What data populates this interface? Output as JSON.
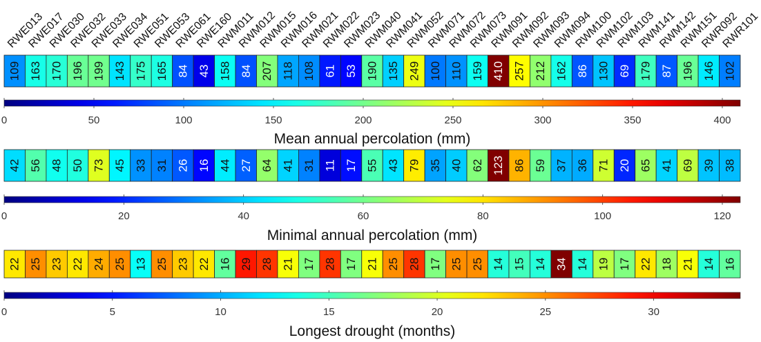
{
  "chart_data": [
    {
      "type": "heatmap",
      "title": "Mean annual percolation (mm)",
      "colormap": "jet",
      "color_range": [
        0,
        410
      ],
      "ticks": [
        0,
        50,
        100,
        150,
        200,
        250,
        300,
        350,
        400
      ],
      "categories": [
        "RWE013",
        "RWE017",
        "RWE030",
        "RWE032",
        "RWE033",
        "RWE034",
        "RWE051",
        "RWE053",
        "RWE061",
        "RWE160",
        "RWM011",
        "RWM012",
        "RWM015",
        "RWM016",
        "RWM021",
        "RWM022",
        "RWM023",
        "RWM040",
        "RWM041",
        "RWM052",
        "RWM071",
        "RWM072",
        "RWM073",
        "RWM091",
        "RWM092",
        "RWM093",
        "RWM094",
        "RWM100",
        "RWM102",
        "RWM103",
        "RWM141",
        "RWM142",
        "RWM151",
        "RWR092",
        "RWR101"
      ],
      "values": [
        109,
        163,
        170,
        196,
        199,
        143,
        175,
        165,
        84,
        43,
        158,
        84,
        207,
        118,
        108,
        61,
        53,
        190,
        135,
        249,
        100,
        110,
        159,
        410,
        257,
        212,
        162,
        86,
        130,
        69,
        179,
        87,
        196,
        146,
        102
      ]
    },
    {
      "type": "heatmap",
      "title": "Minimal annual percolation (mm)",
      "colormap": "jet",
      "color_range": [
        0,
        123
      ],
      "ticks": [
        0,
        20,
        40,
        60,
        80,
        100,
        120
      ],
      "values": [
        42,
        56,
        48,
        50,
        73,
        45,
        33,
        31,
        26,
        16,
        44,
        27,
        64,
        41,
        31,
        11,
        17,
        55,
        43,
        79,
        35,
        40,
        62,
        123,
        86,
        59,
        37,
        36,
        71,
        20,
        65,
        41,
        69,
        39,
        38
      ]
    },
    {
      "type": "heatmap",
      "title": "Longest drought (months)",
      "colormap": "jet",
      "color_range": [
        0,
        34
      ],
      "ticks": [
        0,
        5,
        10,
        15,
        20,
        25,
        30
      ],
      "values": [
        22,
        25,
        23,
        22,
        24,
        25,
        13,
        25,
        23,
        22,
        16,
        29,
        28,
        21,
        17,
        28,
        17,
        21,
        25,
        28,
        17,
        25,
        25,
        14,
        15,
        14,
        34,
        14,
        19,
        17,
        22,
        18,
        21,
        14,
        16
      ]
    }
  ]
}
